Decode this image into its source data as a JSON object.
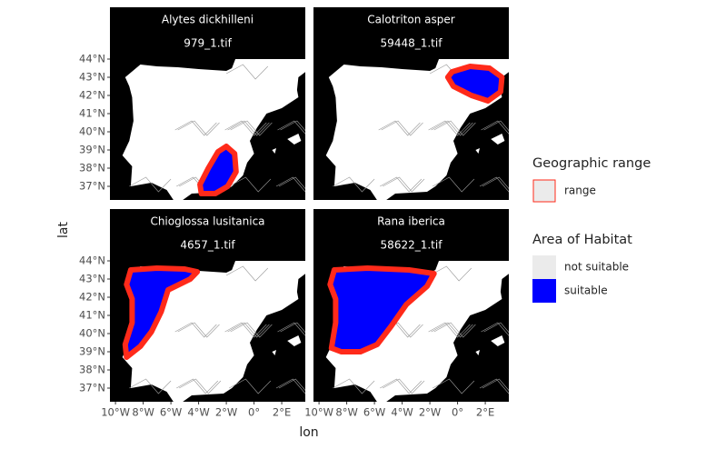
{
  "chart_data": {
    "type": "map",
    "xlabel": "lon",
    "ylabel": "lat",
    "facets": [
      {
        "title": "Alytes dickhilleni",
        "subtitle": "979_1.tif"
      },
      {
        "title": "Calotriton asper",
        "subtitle": "59448_1.tif"
      },
      {
        "title": "Chioglossa lusitanica",
        "subtitle": "4657_1.tif"
      },
      {
        "title": "Rana iberica",
        "subtitle": "58622_1.tif"
      }
    ],
    "xlim": [
      -10.4,
      3.7
    ],
    "ylim": [
      36.25,
      44.0
    ],
    "xticks": [
      {
        "value": -10,
        "label": "10°W"
      },
      {
        "value": -8,
        "label": "8°W"
      },
      {
        "value": -6,
        "label": "6°W"
      },
      {
        "value": -4,
        "label": "4°W"
      },
      {
        "value": -2,
        "label": "2°W"
      },
      {
        "value": 0,
        "label": "0°"
      },
      {
        "value": 2,
        "label": "2°E"
      }
    ],
    "yticks": [
      {
        "value": 37,
        "label": "37°N"
      },
      {
        "value": 38,
        "label": "38°N"
      },
      {
        "value": 39,
        "label": "39°N"
      },
      {
        "value": 40,
        "label": "40°N"
      },
      {
        "value": 41,
        "label": "41°N"
      },
      {
        "value": 42,
        "label": "42°N"
      },
      {
        "value": 43,
        "label": "43°N"
      },
      {
        "value": 44,
        "label": "44°N"
      }
    ],
    "legends": [
      {
        "title": "Geographic range",
        "items": [
          {
            "label": "range",
            "color": "#ff2a1a"
          }
        ]
      },
      {
        "title": "Area of Habitat",
        "items": [
          {
            "label": "not suitable",
            "color": "#ebebeb"
          },
          {
            "label": "suitable",
            "color": "#0000ff"
          }
        ]
      }
    ]
  }
}
